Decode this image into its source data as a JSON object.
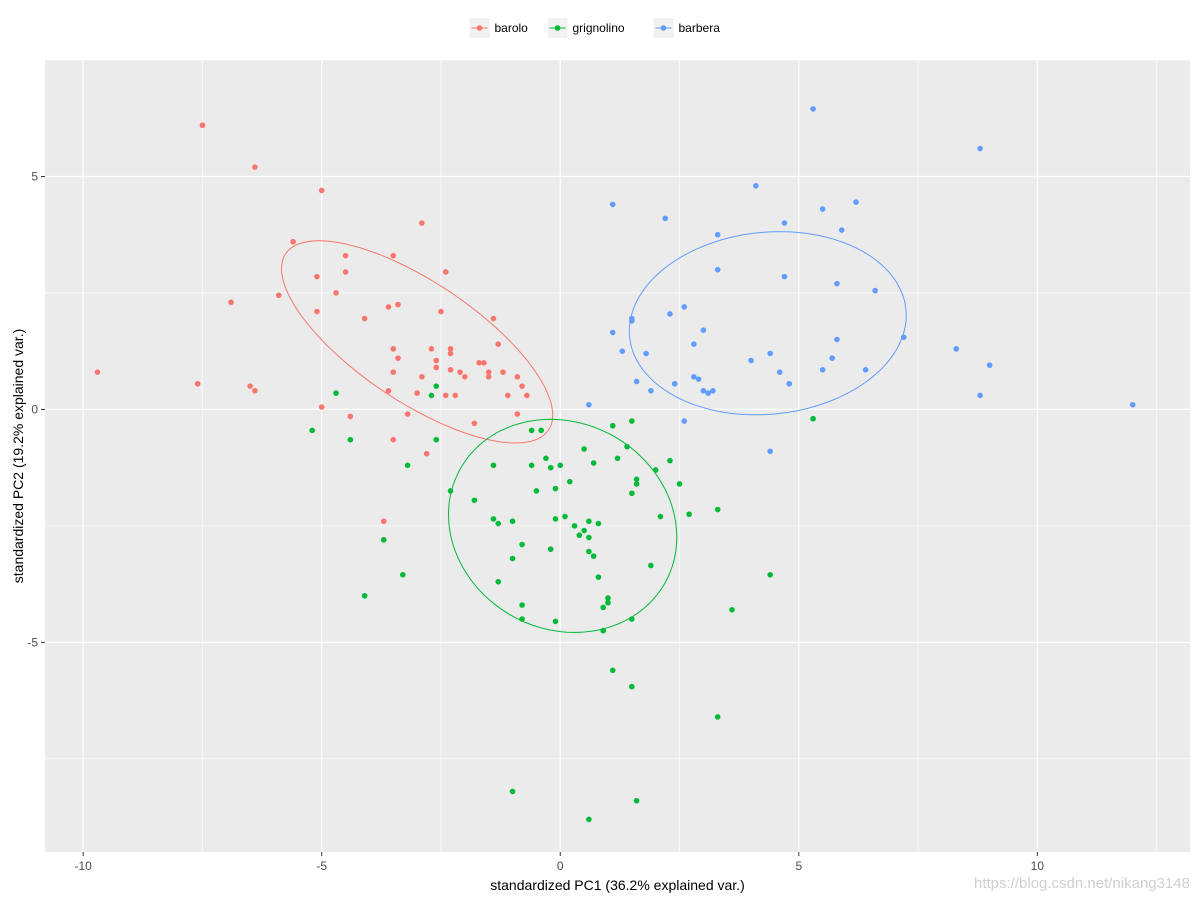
{
  "chart_data": {
    "type": "scatter",
    "xlabel": "standardized PC1 (36.2% explained var.)",
    "ylabel": "standardized PC2 (19.2% explained var.)",
    "xlim": [
      -10.8,
      13.2
    ],
    "ylim": [
      -9.5,
      7.5
    ],
    "x_ticks": [
      -10,
      -5,
      0,
      5,
      10
    ],
    "y_ticks": [
      -5,
      0,
      5
    ],
    "x_tick_labels": [
      "-10",
      "-5",
      "0",
      "5",
      "10"
    ],
    "y_tick_labels": [
      "-5",
      "0",
      "5"
    ],
    "grid": true,
    "legend_position": "top",
    "series": [
      {
        "name": "barolo",
        "color": "#F8766D",
        "points": [
          [
            -7.5,
            6.1
          ],
          [
            -6.4,
            5.2
          ],
          [
            -5.0,
            4.7
          ],
          [
            -2.9,
            4.0
          ],
          [
            -5.6,
            3.6
          ],
          [
            -3.5,
            3.3
          ],
          [
            -4.5,
            3.3
          ],
          [
            -4.5,
            2.95
          ],
          [
            -2.4,
            2.95
          ],
          [
            -5.1,
            2.85
          ],
          [
            -4.7,
            2.5
          ],
          [
            -5.9,
            2.45
          ],
          [
            -6.9,
            2.3
          ],
          [
            -3.4,
            2.25
          ],
          [
            -3.6,
            2.2
          ],
          [
            -5.1,
            2.1
          ],
          [
            -2.5,
            2.1
          ],
          [
            -1.4,
            1.95
          ],
          [
            -4.1,
            1.95
          ],
          [
            -1.3,
            1.4
          ],
          [
            -3.5,
            1.3
          ],
          [
            -2.7,
            1.3
          ],
          [
            -2.3,
            1.3
          ],
          [
            -2.3,
            1.2
          ],
          [
            -3.4,
            1.1
          ],
          [
            -2.6,
            1.05
          ],
          [
            -1.7,
            1.0
          ],
          [
            -1.6,
            1.0
          ],
          [
            -2.6,
            0.9
          ],
          [
            -2.3,
            0.85
          ],
          [
            -1.5,
            0.8
          ],
          [
            -2.1,
            0.8
          ],
          [
            -1.2,
            0.8
          ],
          [
            -3.5,
            0.8
          ],
          [
            -2.0,
            0.7
          ],
          [
            -2.9,
            0.7
          ],
          [
            -1.5,
            0.7
          ],
          [
            -0.9,
            0.7
          ],
          [
            -0.8,
            0.5
          ],
          [
            -6.5,
            0.5
          ],
          [
            -9.7,
            0.8
          ],
          [
            -7.6,
            0.55
          ],
          [
            -6.4,
            0.4
          ],
          [
            -3.6,
            0.4
          ],
          [
            -3.0,
            0.35
          ],
          [
            -1.1,
            0.3
          ],
          [
            -0.7,
            0.3
          ],
          [
            -2.4,
            0.3
          ],
          [
            -2.2,
            0.3
          ],
          [
            -5.0,
            0.05
          ],
          [
            -3.2,
            -0.1
          ],
          [
            -0.9,
            -0.1
          ],
          [
            -4.4,
            -0.15
          ],
          [
            -1.8,
            -0.3
          ],
          [
            -3.5,
            -0.65
          ],
          [
            -2.8,
            -0.95
          ],
          [
            -3.7,
            -2.4
          ]
        ]
      },
      {
        "name": "grignolino",
        "color": "#00BA38",
        "points": [
          [
            -4.7,
            0.35
          ],
          [
            -2.6,
            0.5
          ],
          [
            -2.7,
            0.3
          ],
          [
            -5.2,
            -0.45
          ],
          [
            -4.4,
            -0.65
          ],
          [
            -2.6,
            -0.65
          ],
          [
            5.3,
            -0.2
          ],
          [
            1.5,
            -0.25
          ],
          [
            1.1,
            -0.35
          ],
          [
            -0.6,
            -0.45
          ],
          [
            -0.4,
            -0.45
          ],
          [
            1.4,
            -0.8
          ],
          [
            0.5,
            -0.85
          ],
          [
            -0.3,
            -1.05
          ],
          [
            1.2,
            -1.05
          ],
          [
            2.3,
            -1.1
          ],
          [
            -3.2,
            -1.2
          ],
          [
            -1.4,
            -1.2
          ],
          [
            -0.6,
            -1.2
          ],
          [
            -0.2,
            -1.25
          ],
          [
            0.0,
            -1.2
          ],
          [
            0.7,
            -1.15
          ],
          [
            2.0,
            -1.3
          ],
          [
            1.6,
            -1.5
          ],
          [
            1.6,
            -1.6
          ],
          [
            0.2,
            -1.55
          ],
          [
            -0.1,
            -1.7
          ],
          [
            -0.5,
            -1.75
          ],
          [
            2.5,
            -1.6
          ],
          [
            1.5,
            -1.8
          ],
          [
            -2.3,
            -1.75
          ],
          [
            -1.8,
            -1.95
          ],
          [
            -0.1,
            -2.35
          ],
          [
            0.1,
            -2.3
          ],
          [
            0.6,
            -2.4
          ],
          [
            0.8,
            -2.45
          ],
          [
            2.1,
            -2.3
          ],
          [
            2.7,
            -2.25
          ],
          [
            3.3,
            -2.15
          ],
          [
            -1.4,
            -2.35
          ],
          [
            -1.0,
            -2.4
          ],
          [
            -1.3,
            -2.45
          ],
          [
            0.3,
            -2.5
          ],
          [
            0.5,
            -2.6
          ],
          [
            0.4,
            -2.7
          ],
          [
            0.6,
            -2.75
          ],
          [
            -0.8,
            -2.9
          ],
          [
            -3.7,
            -2.8
          ],
          [
            -0.2,
            -3.0
          ],
          [
            0.6,
            -3.05
          ],
          [
            0.7,
            -3.15
          ],
          [
            -1.0,
            -3.2
          ],
          [
            1.9,
            -3.35
          ],
          [
            -3.3,
            -3.55
          ],
          [
            0.8,
            -3.6
          ],
          [
            4.4,
            -3.55
          ],
          [
            -1.3,
            -3.7
          ],
          [
            -4.1,
            -4.0
          ],
          [
            1.0,
            -4.05
          ],
          [
            1.0,
            -4.15
          ],
          [
            -0.8,
            -4.2
          ],
          [
            0.9,
            -4.25
          ],
          [
            3.6,
            -4.3
          ],
          [
            -0.8,
            -4.5
          ],
          [
            1.5,
            -4.5
          ],
          [
            -0.1,
            -4.55
          ],
          [
            0.9,
            -4.75
          ],
          [
            1.1,
            -5.6
          ],
          [
            1.5,
            -5.95
          ],
          [
            3.3,
            -6.6
          ],
          [
            -1.0,
            -8.2
          ],
          [
            1.6,
            -8.4
          ],
          [
            0.6,
            -8.8
          ]
        ]
      },
      {
        "name": "barbera",
        "color": "#619CFF",
        "points": [
          [
            5.3,
            6.45
          ],
          [
            8.8,
            5.6
          ],
          [
            4.1,
            4.8
          ],
          [
            6.2,
            4.45
          ],
          [
            1.1,
            4.4
          ],
          [
            5.5,
            4.3
          ],
          [
            2.2,
            4.1
          ],
          [
            4.7,
            4.0
          ],
          [
            5.9,
            3.85
          ],
          [
            3.3,
            3.75
          ],
          [
            3.3,
            3.0
          ],
          [
            4.7,
            2.85
          ],
          [
            5.8,
            2.7
          ],
          [
            6.6,
            2.55
          ],
          [
            2.6,
            2.2
          ],
          [
            2.3,
            2.05
          ],
          [
            1.5,
            1.95
          ],
          [
            1.5,
            1.9
          ],
          [
            3.0,
            1.7
          ],
          [
            1.1,
            1.65
          ],
          [
            7.2,
            1.55
          ],
          [
            5.8,
            1.5
          ],
          [
            2.8,
            1.4
          ],
          [
            8.3,
            1.3
          ],
          [
            1.3,
            1.25
          ],
          [
            1.8,
            1.2
          ],
          [
            4.4,
            1.2
          ],
          [
            5.7,
            1.1
          ],
          [
            4.0,
            1.05
          ],
          [
            9.0,
            0.95
          ],
          [
            6.4,
            0.85
          ],
          [
            5.5,
            0.85
          ],
          [
            4.6,
            0.8
          ],
          [
            2.8,
            0.7
          ],
          [
            2.9,
            0.65
          ],
          [
            1.6,
            0.6
          ],
          [
            2.4,
            0.55
          ],
          [
            4.8,
            0.55
          ],
          [
            3.2,
            0.4
          ],
          [
            1.9,
            0.4
          ],
          [
            3.1,
            0.35
          ],
          [
            3.0,
            0.4
          ],
          [
            8.8,
            0.3
          ],
          [
            0.6,
            0.1
          ],
          [
            12.0,
            0.1
          ],
          [
            2.6,
            -0.25
          ],
          [
            4.4,
            -0.9
          ]
        ]
      }
    ],
    "ellipses": [
      {
        "series": "barolo",
        "cx": -3.0,
        "cy": 1.45,
        "rx_dir": [
          2.75,
          -1.9
        ],
        "ry_dir": [
          -0.72,
          -1.05
        ]
      },
      {
        "series": "grignolino",
        "cx": 0.05,
        "cy": -2.5,
        "rx_dir": [
          1.05,
          -2.15
        ],
        "ry_dir": [
          2.15,
          0.78
        ]
      },
      {
        "series": "barbera",
        "cx": 4.35,
        "cy": 1.85,
        "rx_dir": [
          2.9,
          0.25
        ],
        "ry_dir": [
          0.12,
          -1.95
        ]
      }
    ]
  },
  "watermark": "https://blog.csdn.net/nikang3148"
}
